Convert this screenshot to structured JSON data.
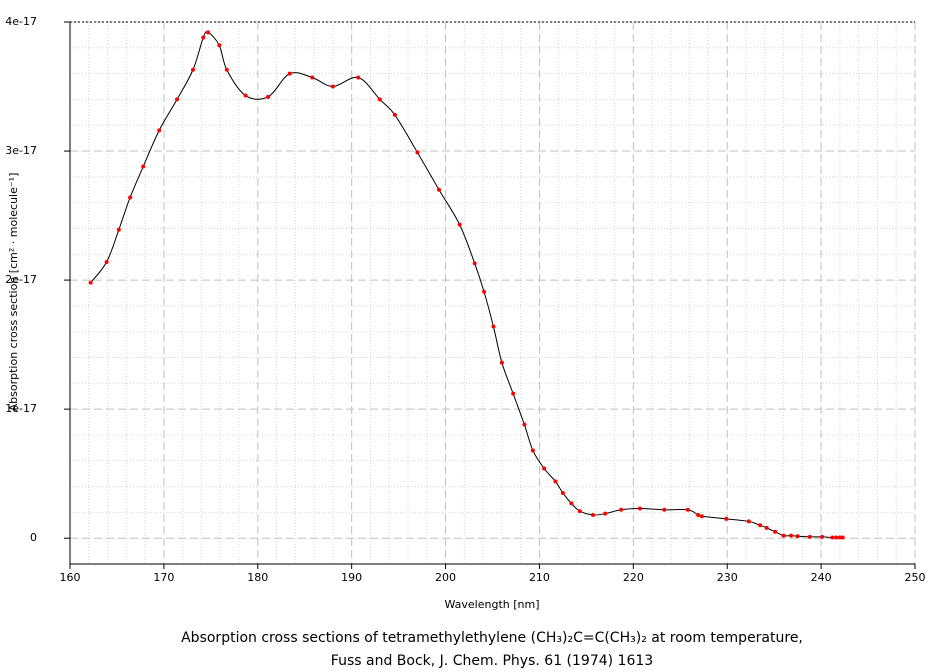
{
  "chart_data": {
    "type": "line",
    "y_label": "Absorption cross section [cm² · molecule⁻¹]",
    "x_label": "Wavelength [nm]",
    "caption": [
      "Absorption cross sections of tetramethylethylene (CH₃)₂C=C(CH₃)₂ at room temperature,",
      "Fuss and Bock, J. Chem. Phys. 61 (1974) 1613"
    ],
    "x": [
      162.2,
      163.9,
      165.2,
      166.4,
      167.8,
      169.5,
      171.4,
      173.1,
      174.2,
      174.7,
      175.9,
      176.7,
      178.7,
      181.1,
      183.4,
      185.8,
      188.0,
      190.7,
      193.0,
      194.6,
      197.0,
      199.3,
      201.5,
      203.1,
      204.1,
      205.1,
      206.0,
      207.2,
      208.4,
      209.3,
      210.5,
      211.7,
      212.5,
      213.4,
      214.3,
      215.7,
      217.0,
      218.7,
      220.7,
      223.3,
      225.8,
      226.9,
      227.3,
      229.9,
      232.3,
      233.5,
      234.2,
      235.1,
      236.0,
      236.8,
      237.5,
      238.8,
      240.1,
      241.2,
      241.6,
      242.0,
      242.3
    ],
    "values": [
      1.98e-17,
      2.14e-17,
      2.39e-17,
      2.64e-17,
      2.88e-17,
      3.16e-17,
      3.4e-17,
      3.63e-17,
      3.88e-17,
      3.92e-17,
      3.82e-17,
      3.63e-17,
      3.43e-17,
      3.42e-17,
      3.6e-17,
      3.57e-17,
      3.5e-17,
      3.57e-17,
      3.4e-17,
      3.28e-17,
      2.99e-17,
      2.7e-17,
      2.43e-17,
      2.13e-17,
      1.91e-17,
      1.64e-17,
      1.36e-17,
      1.12e-17,
      8.8e-18,
      6.8e-18,
      5.4e-18,
      4.4e-18,
      3.5e-18,
      2.7e-18,
      2.1e-18,
      1.8e-18,
      1.9e-18,
      2.2e-18,
      2.3e-18,
      2.2e-18,
      2.2e-18,
      1.8e-18,
      1.7e-18,
      1.5e-18,
      1.3e-18,
      1e-18,
      8e-19,
      5e-19,
      2e-19,
      2e-19,
      1.5e-19,
      1e-19,
      1e-19,
      5e-20,
      5e-20,
      5e-20,
      5e-20
    ],
    "color": "#ff0000",
    "line_color": "#000000",
    "xlim": [
      160,
      250
    ],
    "xticks": [
      160,
      170,
      180,
      190,
      200,
      210,
      220,
      230,
      240,
      250
    ],
    "ylim": [
      -2e-18,
      4e-17
    ],
    "yticks": [
      0,
      1e-17,
      2e-17,
      3e-17,
      4e-17
    ],
    "grid": true,
    "minor_grid": true
  }
}
